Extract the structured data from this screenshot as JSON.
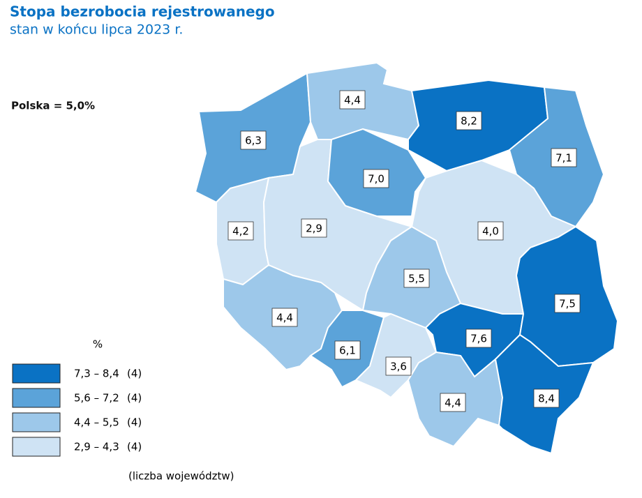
{
  "header": {
    "title": "Stopa bezrobocia rejestrowanego",
    "subtitle": "stan w końcu lipca 2023 r."
  },
  "summary": "Polska = 5,0%",
  "regions": [
    {
      "label": "6,3",
      "color": "#5ba3d9"
    },
    {
      "label": "4,4",
      "color": "#9dc8ea"
    },
    {
      "label": "8,2",
      "color": "#0a72c4"
    },
    {
      "label": "7,1",
      "color": "#5ba3d9"
    },
    {
      "label": "4,2",
      "color": "#cfe3f4"
    },
    {
      "label": "2,9",
      "color": "#cfe3f4"
    },
    {
      "label": "7,0",
      "color": "#5ba3d9"
    },
    {
      "label": "4,0",
      "color": "#cfe3f4"
    },
    {
      "label": "5,5",
      "color": "#9dc8ea"
    },
    {
      "label": "4,4",
      "color": "#9dc8ea"
    },
    {
      "label": "6,1",
      "color": "#5ba3d9"
    },
    {
      "label": "3,6",
      "color": "#cfe3f4"
    },
    {
      "label": "7,6",
      "color": "#0a72c4"
    },
    {
      "label": "7,5",
      "color": "#0a72c4"
    },
    {
      "label": "4,4",
      "color": "#9dc8ea"
    },
    {
      "label": "8,4",
      "color": "#0a72c4"
    }
  ],
  "legend": {
    "title": "%",
    "note": "(liczba województw)",
    "items": [
      {
        "range": "7,3 – 8,4",
        "count": "(4)",
        "color": "#0a72c4"
      },
      {
        "range": "5,6 – 7,2",
        "count": "(4)",
        "color": "#5ba3d9"
      },
      {
        "range": "4,4 – 5,5",
        "count": "(4)",
        "color": "#9dc8ea"
      },
      {
        "range": "2,9 – 4,3",
        "count": "(4)",
        "color": "#cfe3f4"
      }
    ]
  }
}
